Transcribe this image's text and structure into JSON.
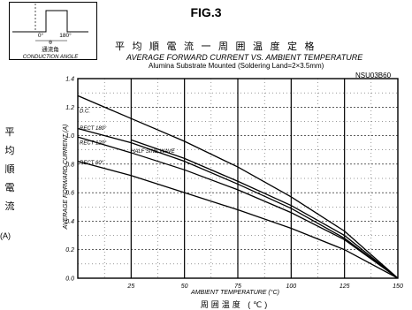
{
  "header": {
    "fig_label": "FIG.3",
    "title_jp": "平均順電流一周囲温度定格",
    "title_en": "AVERAGE FORWARD CURRENT VS. AMBIENT TEMPERATURE",
    "subtitle": "Alumina Substrate Mounted (Soldering Land=2×3.5mm)",
    "part_number": "NSU03B60"
  },
  "inset": {
    "label_0": "0°",
    "label_180": "180°",
    "theta": "θ",
    "jp_label": "通流角",
    "en_label": "CONDUCTION ANGLE"
  },
  "y_axis_jp": "平均順電流",
  "y_unit": "(A)",
  "chart_data": {
    "type": "line",
    "title": "AVERAGE FORWARD CURRENT VS. AMBIENT TEMPERATURE",
    "xlabel": "AMBIENT TEMPERATURE (°C)",
    "xlabel_jp": "周囲温度 (℃)",
    "ylabel": "AVERAGE FORWARD CURRENT (A)",
    "xlim": [
      0,
      150
    ],
    "ylim": [
      0,
      1.4
    ],
    "xticks": [
      25,
      50,
      75,
      100,
      125,
      150
    ],
    "yticks": [
      0,
      0.2,
      0.4,
      0.6,
      0.8,
      1.0,
      1.2,
      1.4
    ],
    "grid": true,
    "series": [
      {
        "name": "D.C.",
        "x": [
          0,
          25,
          50,
          75,
          100,
          125,
          150
        ],
        "y": [
          1.28,
          1.12,
          0.96,
          0.78,
          0.57,
          0.33,
          0.0
        ]
      },
      {
        "name": "RECT 180°",
        "x": [
          0,
          25,
          50,
          75,
          100,
          125,
          150
        ],
        "y": [
          1.05,
          0.95,
          0.82,
          0.66,
          0.49,
          0.28,
          0.0
        ]
      },
      {
        "name": "HALF SINE WAVE",
        "x": [
          25,
          50,
          75,
          100,
          125,
          150
        ],
        "y": [
          0.97,
          0.84,
          0.68,
          0.51,
          0.3,
          0.0
        ]
      },
      {
        "name": "RECT 120°",
        "x": [
          0,
          25,
          50,
          75,
          100,
          125,
          150
        ],
        "y": [
          0.99,
          0.88,
          0.76,
          0.62,
          0.46,
          0.27,
          0.0
        ]
      },
      {
        "name": "RECT 60°",
        "x": [
          0,
          25,
          50,
          75,
          100,
          125,
          150
        ],
        "y": [
          0.82,
          0.72,
          0.6,
          0.48,
          0.35,
          0.2,
          0.0
        ]
      }
    ]
  }
}
